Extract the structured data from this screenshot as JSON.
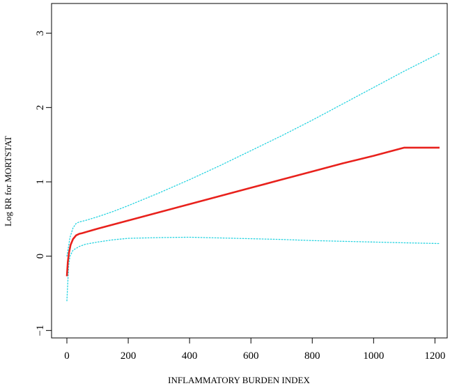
{
  "chart_data": {
    "type": "line",
    "title": "",
    "xlabel": "INFLAMMATORY BURDEN INDEX",
    "ylabel": "Log RR for MORTSTAT",
    "xlim": [
      -50,
      1240
    ],
    "ylim": [
      -1.1,
      3.4
    ],
    "x_ticks": [
      0,
      200,
      400,
      600,
      800,
      1000,
      1200
    ],
    "x_tick_labels": [
      "0",
      "200",
      "400",
      "600",
      "800",
      "1000",
      "1200"
    ],
    "y_ticks": [
      -1,
      0,
      1,
      2,
      3
    ],
    "y_tick_labels": [
      "−1",
      "0",
      "1",
      "2",
      "3"
    ],
    "grid": false,
    "legend": "none",
    "series": [
      {
        "role": "estimate",
        "color": "#e8211c",
        "style": "solid",
        "x": [
          0,
          3,
          7,
          12,
          20,
          30,
          40,
          50,
          100,
          200,
          300,
          400,
          500,
          600,
          700,
          800,
          900,
          1000,
          1100,
          1215
        ],
        "y": [
          -0.27,
          -0.08,
          0.05,
          0.15,
          0.23,
          0.28,
          0.3,
          0.31,
          0.37,
          0.48,
          0.59,
          0.7,
          0.81,
          0.92,
          1.03,
          1.14,
          1.25,
          1.35,
          1.46,
          1.46
        ]
      },
      {
        "role": "upper-ci",
        "color": "#24d3e0",
        "style": "dotted",
        "x": [
          0,
          5,
          10,
          20,
          30,
          40,
          60,
          100,
          150,
          200,
          300,
          400,
          500,
          600,
          700,
          800,
          900,
          1000,
          1100,
          1215
        ],
        "y": [
          0.0,
          0.12,
          0.25,
          0.38,
          0.44,
          0.46,
          0.48,
          0.53,
          0.6,
          0.68,
          0.85,
          1.03,
          1.22,
          1.42,
          1.62,
          1.83,
          2.05,
          2.27,
          2.49,
          2.73
        ]
      },
      {
        "role": "lower-ci",
        "color": "#24d3e0",
        "style": "dotted",
        "x": [
          0,
          3,
          6,
          10,
          20,
          40,
          60,
          100,
          150,
          200,
          300,
          400,
          500,
          600,
          700,
          800,
          900,
          1000,
          1100,
          1215
        ],
        "y": [
          -0.6,
          -0.35,
          -0.12,
          0.0,
          0.08,
          0.13,
          0.16,
          0.19,
          0.22,
          0.24,
          0.25,
          0.255,
          0.245,
          0.235,
          0.225,
          0.21,
          0.2,
          0.19,
          0.18,
          0.17
        ]
      }
    ]
  }
}
